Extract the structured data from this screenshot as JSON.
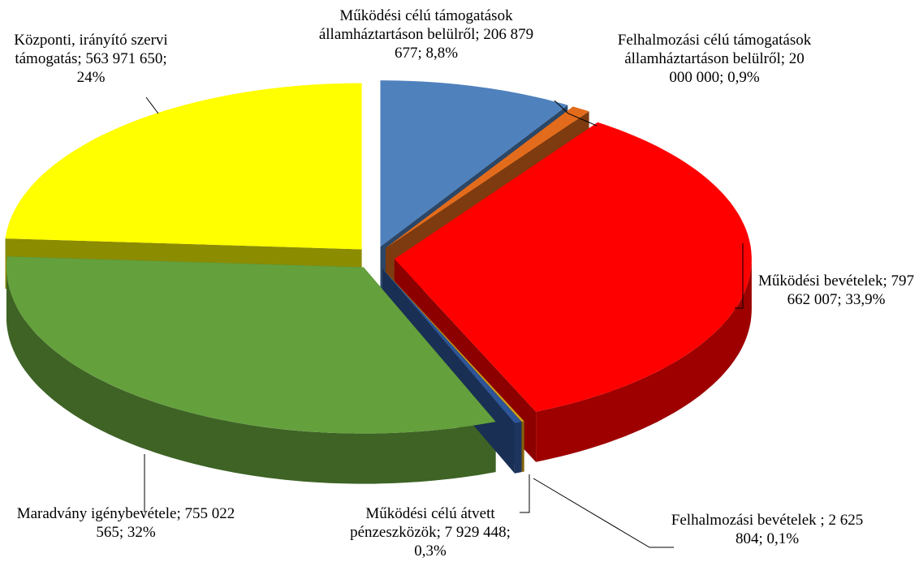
{
  "chart_data": {
    "type": "pie3d",
    "categories": [
      "Működési célú támogatások államháztartáson belülről",
      "Felhalmozási célú támogatások államháztartáson belülről",
      "Működési bevételek",
      "Felhalmozási bevételek ",
      "Működési célú átvett pénzeszközök",
      "Maradvány igénybevétele",
      "Központi, irányító szervi támogatás"
    ],
    "values": [
      206879677,
      20000000,
      797662007,
      2625804,
      7929448,
      755022565,
      563971650
    ],
    "value_labels": [
      "206 879 677",
      "20 000 000",
      "797 662 007",
      "2 625 804",
      "7 929 448",
      "755 022 565",
      "563 971 650"
    ],
    "percents": [
      8.8,
      0.9,
      33.9,
      0.1,
      0.3,
      32,
      24
    ],
    "percent_labels": [
      "8,8%",
      "0,9%",
      "33,9%",
      "0,1%",
      "0,3%",
      "32%",
      "24%"
    ],
    "separator": "; ",
    "colors": [
      "#4f81bd",
      "#e36c1c",
      "#ff0000",
      "#d4a017",
      "#2e5597",
      "#64a03c",
      "#ffff00"
    ]
  }
}
